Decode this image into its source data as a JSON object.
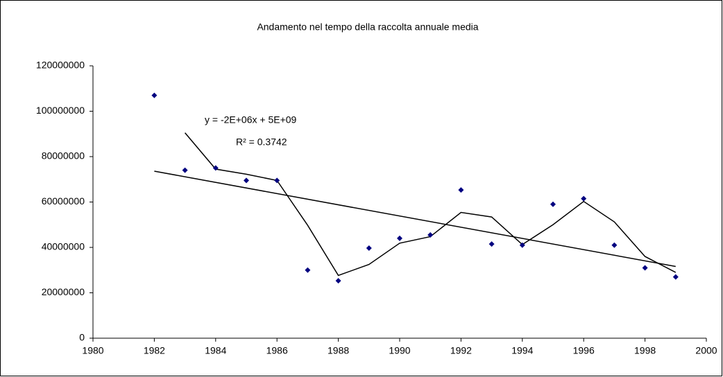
{
  "chart_data": {
    "type": "scatter",
    "title": "Andamento nel tempo della raccolta annuale media",
    "x": [
      1982,
      1983,
      1984,
      1985,
      1986,
      1987,
      1988,
      1989,
      1990,
      1991,
      1992,
      1993,
      1994,
      1995,
      1996,
      1997,
      1998,
      1999
    ],
    "series": [
      {
        "color": "#000080",
        "values": [
          107000000,
          74000000,
          75000000,
          69500000,
          69500000,
          30000000,
          25300000,
          39700000,
          44000000,
          45500000,
          65300000,
          41500000,
          41000000,
          59000000,
          61500000,
          41000000,
          31000000,
          27000000
        ]
      }
    ],
    "xlim": [
      1980,
      2000
    ],
    "xticks": [
      1980,
      1982,
      1984,
      1986,
      1988,
      1990,
      1992,
      1994,
      1996,
      1998,
      2000
    ],
    "ylim": [
      0,
      120000000
    ],
    "yticks": [
      0,
      20000000,
      40000000,
      60000000,
      80000000,
      100000000,
      120000000
    ],
    "trendline": "linear",
    "moving_average_period": 2,
    "line_color": "#000000",
    "annotations": [
      "y = -2E+06x + 5E+09",
      "R² = 0.3742"
    ]
  }
}
